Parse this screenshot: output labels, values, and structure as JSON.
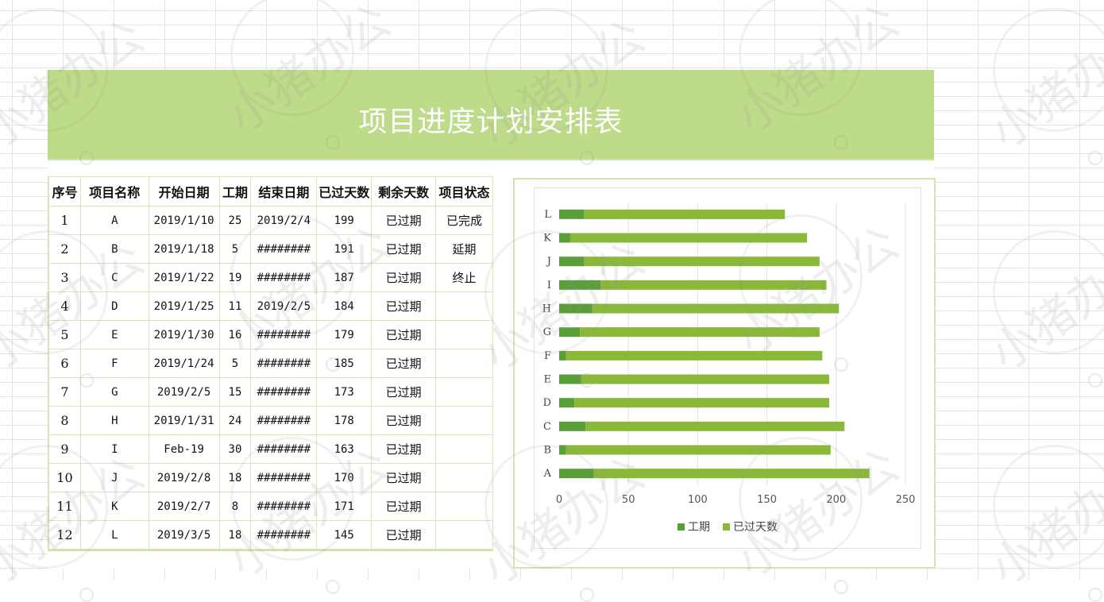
{
  "title": "项目进度计划安排表",
  "watermark": "小猪办公",
  "table": {
    "headers": [
      "序号",
      "项目名称",
      "开始日期",
      "工期",
      "结束日期",
      "已过天数",
      "剩余天数",
      "项目状态"
    ],
    "rows": [
      [
        "1",
        "A",
        "2019/1/10",
        "25",
        "2019/2/4",
        "199",
        "已过期",
        "已完成"
      ],
      [
        "2",
        "B",
        "2019/1/18",
        "5",
        "########",
        "191",
        "已过期",
        "延期"
      ],
      [
        "3",
        "C",
        "2019/1/22",
        "19",
        "########",
        "187",
        "已过期",
        "终止"
      ],
      [
        "4",
        "D",
        "2019/1/25",
        "11",
        "2019/2/5",
        "184",
        "已过期",
        ""
      ],
      [
        "5",
        "E",
        "2019/1/30",
        "16",
        "########",
        "179",
        "已过期",
        ""
      ],
      [
        "6",
        "F",
        "2019/1/24",
        "5",
        "########",
        "185",
        "已过期",
        ""
      ],
      [
        "7",
        "G",
        "2019/2/5",
        "15",
        "########",
        "173",
        "已过期",
        ""
      ],
      [
        "8",
        "H",
        "2019/1/31",
        "24",
        "########",
        "178",
        "已过期",
        ""
      ],
      [
        "9",
        "I",
        "Feb-19",
        "30",
        "########",
        "163",
        "已过期",
        ""
      ],
      [
        "10",
        "J",
        "2019/2/8",
        "18",
        "########",
        "170",
        "已过期",
        ""
      ],
      [
        "11",
        "K",
        "2019/2/7",
        "8",
        "########",
        "171",
        "已过期",
        ""
      ],
      [
        "12",
        "L",
        "2019/3/5",
        "18",
        "########",
        "145",
        "已过期",
        ""
      ]
    ]
  },
  "chart_data": {
    "type": "bar",
    "orientation": "horizontal",
    "stacked": true,
    "categories": [
      "A",
      "B",
      "C",
      "D",
      "E",
      "F",
      "G",
      "H",
      "I",
      "J",
      "K",
      "L"
    ],
    "series": [
      {
        "name": "工期",
        "values": [
          25,
          5,
          19,
          11,
          16,
          5,
          15,
          24,
          30,
          18,
          8,
          18
        ],
        "color": "#5a9e3a"
      },
      {
        "name": "已过天数",
        "values": [
          199,
          191,
          187,
          184,
          179,
          185,
          173,
          178,
          163,
          170,
          171,
          145
        ],
        "color": "#8ab838"
      }
    ],
    "x_ticks": [
      "0",
      "50",
      "100",
      "150",
      "200",
      "250"
    ],
    "xlim": [
      0,
      250
    ],
    "grid": true,
    "legend_position": "bottom"
  },
  "colors": {
    "banner": "#bddb88",
    "series_duration": "#5a9e3a",
    "series_elapsed": "#8ab838"
  }
}
